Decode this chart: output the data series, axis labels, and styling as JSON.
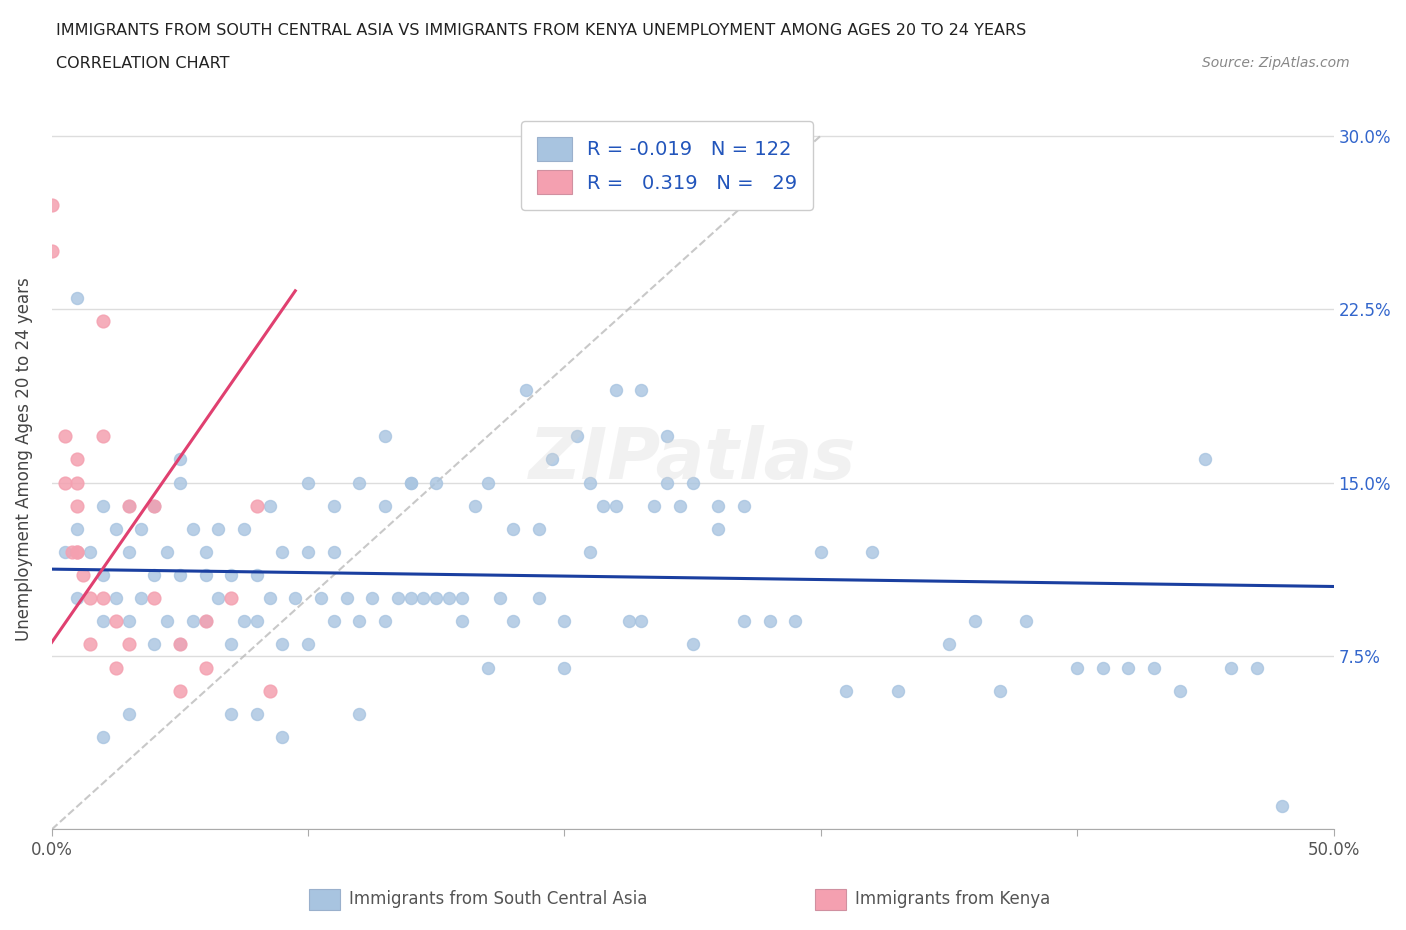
{
  "title_line1": "IMMIGRANTS FROM SOUTH CENTRAL ASIA VS IMMIGRANTS FROM KENYA UNEMPLOYMENT AMONG AGES 20 TO 24 YEARS",
  "title_line2": "CORRELATION CHART",
  "source": "Source: ZipAtlas.com",
  "ylabel": "Unemployment Among Ages 20 to 24 years",
  "xlim": [
    0.0,
    0.5
  ],
  "ylim": [
    0.0,
    0.32
  ],
  "xticks": [
    0.0,
    0.1,
    0.2,
    0.3,
    0.4,
    0.5
  ],
  "yticks": [
    0.0,
    0.075,
    0.15,
    0.225,
    0.3
  ],
  "yticklabels": [
    "",
    "7.5%",
    "15.0%",
    "22.5%",
    "30.0%"
  ],
  "color_asia": "#a8c4e0",
  "color_kenya": "#f4a0b0",
  "trendline_asia_color": "#1a3fa0",
  "trendline_kenya_color": "#e04070",
  "watermark": "ZIPatlas",
  "background_color": "#ffffff",
  "grid_color": "#dddddd",
  "asia_x": [
    0.005,
    0.01,
    0.01,
    0.015,
    0.02,
    0.02,
    0.02,
    0.025,
    0.025,
    0.03,
    0.03,
    0.03,
    0.035,
    0.035,
    0.04,
    0.04,
    0.04,
    0.045,
    0.045,
    0.05,
    0.05,
    0.05,
    0.055,
    0.055,
    0.06,
    0.06,
    0.065,
    0.065,
    0.07,
    0.07,
    0.075,
    0.075,
    0.08,
    0.08,
    0.085,
    0.085,
    0.09,
    0.09,
    0.095,
    0.1,
    0.1,
    0.105,
    0.11,
    0.11,
    0.115,
    0.12,
    0.12,
    0.125,
    0.13,
    0.13,
    0.135,
    0.14,
    0.14,
    0.145,
    0.15,
    0.155,
    0.16,
    0.165,
    0.17,
    0.175,
    0.18,
    0.185,
    0.19,
    0.195,
    0.2,
    0.205,
    0.21,
    0.215,
    0.22,
    0.225,
    0.23,
    0.235,
    0.24,
    0.245,
    0.25,
    0.26,
    0.27,
    0.28,
    0.29,
    0.3,
    0.31,
    0.32,
    0.33,
    0.35,
    0.36,
    0.37,
    0.38,
    0.4,
    0.41,
    0.42,
    0.43,
    0.44,
    0.45,
    0.46,
    0.47,
    0.48,
    0.01,
    0.02,
    0.03,
    0.04,
    0.05,
    0.06,
    0.07,
    0.08,
    0.09,
    0.1,
    0.11,
    0.12,
    0.13,
    0.14,
    0.15,
    0.16,
    0.17,
    0.18,
    0.19,
    0.2,
    0.21,
    0.22,
    0.23,
    0.24,
    0.25,
    0.26,
    0.27
  ],
  "asia_y": [
    0.12,
    0.1,
    0.13,
    0.12,
    0.09,
    0.11,
    0.14,
    0.1,
    0.13,
    0.09,
    0.12,
    0.14,
    0.1,
    0.13,
    0.08,
    0.11,
    0.14,
    0.09,
    0.12,
    0.08,
    0.11,
    0.15,
    0.09,
    0.13,
    0.09,
    0.11,
    0.1,
    0.13,
    0.08,
    0.11,
    0.09,
    0.13,
    0.09,
    0.11,
    0.1,
    0.14,
    0.08,
    0.12,
    0.1,
    0.08,
    0.15,
    0.1,
    0.09,
    0.14,
    0.1,
    0.09,
    0.15,
    0.1,
    0.09,
    0.14,
    0.1,
    0.1,
    0.15,
    0.1,
    0.15,
    0.1,
    0.09,
    0.14,
    0.15,
    0.1,
    0.09,
    0.19,
    0.1,
    0.16,
    0.09,
    0.17,
    0.15,
    0.14,
    0.19,
    0.09,
    0.09,
    0.14,
    0.15,
    0.14,
    0.15,
    0.14,
    0.14,
    0.09,
    0.09,
    0.12,
    0.06,
    0.12,
    0.06,
    0.08,
    0.09,
    0.06,
    0.09,
    0.07,
    0.07,
    0.07,
    0.07,
    0.06,
    0.16,
    0.07,
    0.07,
    0.01,
    0.23,
    0.04,
    0.05,
    0.14,
    0.16,
    0.12,
    0.05,
    0.05,
    0.04,
    0.12,
    0.12,
    0.05,
    0.17,
    0.15,
    0.1,
    0.1,
    0.07,
    0.13,
    0.13,
    0.07,
    0.12,
    0.14,
    0.19,
    0.17,
    0.08,
    0.13,
    0.09
  ],
  "kenya_x": [
    0.0,
    0.0,
    0.005,
    0.005,
    0.008,
    0.01,
    0.01,
    0.01,
    0.01,
    0.01,
    0.012,
    0.015,
    0.015,
    0.02,
    0.02,
    0.02,
    0.025,
    0.025,
    0.03,
    0.03,
    0.04,
    0.04,
    0.05,
    0.05,
    0.06,
    0.06,
    0.07,
    0.08,
    0.085
  ],
  "kenya_y": [
    0.27,
    0.25,
    0.17,
    0.15,
    0.12,
    0.16,
    0.15,
    0.14,
    0.12,
    0.12,
    0.11,
    0.1,
    0.08,
    0.22,
    0.17,
    0.1,
    0.09,
    0.07,
    0.14,
    0.08,
    0.14,
    0.1,
    0.08,
    0.06,
    0.09,
    0.07,
    0.1,
    0.14,
    0.06
  ]
}
